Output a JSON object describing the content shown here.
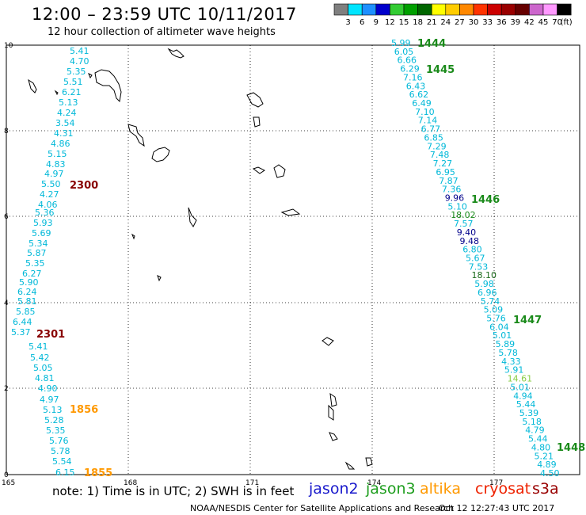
{
  "title": "12:00 – 23:59 UTC 10/11/2017",
  "subtitle": "12 hour collection of altimeter wave heights",
  "legend": {
    "colors": [
      "#7f7f7f",
      "#00e5ff",
      "#1e90ff",
      "#0000cc",
      "#33cc33",
      "#00a000",
      "#006600",
      "#ffff00",
      "#ffcc00",
      "#ff8800",
      "#ff3300",
      "#cc0000",
      "#990000",
      "#660000",
      "#cc66cc",
      "#ff99ff",
      "#000000"
    ],
    "labels": [
      "3",
      "6",
      "9",
      "12",
      "15",
      "18",
      "21",
      "24",
      "27",
      "30",
      "33",
      "36",
      "39",
      "42",
      "45",
      "70"
    ],
    "unit": "(ft)"
  },
  "axes": {
    "x_ticks": [
      "165",
      "168",
      "171",
      "174",
      "177"
    ],
    "y_ticks": [
      "10",
      "8",
      "6",
      "4",
      "2",
      "0"
    ]
  },
  "footer": {
    "note": "note:  1) Time is in UTC; 2) SWH is in feet",
    "satellites": [
      {
        "name": "jason2",
        "color": "#1a1acc"
      },
      {
        "name": "jason3",
        "color": "#1e9e1e"
      },
      {
        "name": "altika",
        "color": "#ff9900"
      },
      {
        "name": "cryosat",
        "color": "#ee2200"
      },
      {
        "name": "s3a",
        "color": "#990000"
      }
    ],
    "credit": "NOAA/NESDIS Center for Satellite Applications and Research",
    "timestamp": "Oct 12 12:27:43 UTC 2017"
  },
  "time_labels": [
    {
      "text": "1444",
      "color": "#1a8a1a"
    },
    {
      "text": "1445",
      "color": "#1a8a1a"
    },
    {
      "text": "1446",
      "color": "#1a8a1a"
    },
    {
      "text": "1447",
      "color": "#1a8a1a"
    },
    {
      "text": "1448",
      "color": "#1a8a1a"
    },
    {
      "text": "2300",
      "color": "#880000"
    },
    {
      "text": "2301",
      "color": "#880000"
    },
    {
      "text": "1856",
      "color": "#ff9900"
    },
    {
      "text": "1855",
      "color": "#ff9900"
    }
  ],
  "track_left": [
    "5.41",
    "4.70",
    "5.35",
    "5.51",
    "6.21",
    "5.13",
    "4.24",
    "3.54",
    "4.31",
    "4.86",
    "5.15",
    "4.83",
    "4.97",
    "5.50",
    "4.27",
    "4.06",
    "5.36",
    "5.93",
    "5.69",
    "5.34",
    "5.87",
    "5.35",
    "6.27",
    "5.90",
    "6.24",
    "5.81",
    "5.85",
    "6.44",
    "5.37",
    "5.41",
    "5.42",
    "5.05",
    "4.81",
    "4.90",
    "4.97",
    "5.13",
    "5.28",
    "5.35",
    "5.76",
    "5.78",
    "5.54",
    "6.15"
  ],
  "track_right": [
    {
      "v": "5.99",
      "c": "#00b8d8"
    },
    {
      "v": "6.05",
      "c": "#00b8d8"
    },
    {
      "v": "6.66",
      "c": "#00b8d8"
    },
    {
      "v": "6.29",
      "c": "#00b8d8"
    },
    {
      "v": "7.16",
      "c": "#00b8d8"
    },
    {
      "v": "6.43",
      "c": "#00b8d8"
    },
    {
      "v": "6.62",
      "c": "#00b8d8"
    },
    {
      "v": "6.49",
      "c": "#00b8d8"
    },
    {
      "v": "7.10",
      "c": "#00b8d8"
    },
    {
      "v": "7.14",
      "c": "#00b8d8"
    },
    {
      "v": "6.77",
      "c": "#00b8d8"
    },
    {
      "v": "6.85",
      "c": "#00b8d8"
    },
    {
      "v": "7.29",
      "c": "#00b8d8"
    },
    {
      "v": "7.48",
      "c": "#00b8d8"
    },
    {
      "v": "7.27",
      "c": "#00b8d8"
    },
    {
      "v": "6.95",
      "c": "#00b8d8"
    },
    {
      "v": "7.87",
      "c": "#00b8d8"
    },
    {
      "v": "7.36",
      "c": "#00b8d8"
    },
    {
      "v": "9.96",
      "c": "#00008b"
    },
    {
      "v": "5.10",
      "c": "#00b8d8"
    },
    {
      "v": "18.02",
      "c": "#1a8a1a"
    },
    {
      "v": "7.57",
      "c": "#00b8d8"
    },
    {
      "v": "9.40",
      "c": "#00008b"
    },
    {
      "v": "9.48",
      "c": "#00008b"
    },
    {
      "v": "6.80",
      "c": "#00b8d8"
    },
    {
      "v": "5.67",
      "c": "#00b8d8"
    },
    {
      "v": "7.53",
      "c": "#00b8d8"
    },
    {
      "v": "18.10",
      "c": "#1a6a1a"
    },
    {
      "v": "5.98",
      "c": "#00b8d8"
    },
    {
      "v": "6.96",
      "c": "#00b8d8"
    },
    {
      "v": "5.74",
      "c": "#00b8d8"
    },
    {
      "v": "5.09",
      "c": "#00b8d8"
    },
    {
      "v": "5.76",
      "c": "#00b8d8"
    },
    {
      "v": "6.04",
      "c": "#00b8d8"
    },
    {
      "v": "5.01",
      "c": "#00b8d8"
    },
    {
      "v": "5.89",
      "c": "#00b8d8"
    },
    {
      "v": "5.78",
      "c": "#00b8d8"
    },
    {
      "v": "4.33",
      "c": "#00b8d8"
    },
    {
      "v": "5.91",
      "c": "#00b8d8"
    },
    {
      "v": "14.61",
      "c": "#88cc44"
    },
    {
      "v": "5.01",
      "c": "#00b8d8"
    },
    {
      "v": "4.94",
      "c": "#00b8d8"
    },
    {
      "v": "5.44",
      "c": "#00b8d8"
    },
    {
      "v": "5.39",
      "c": "#00b8d8"
    },
    {
      "v": "5.18",
      "c": "#00b8d8"
    },
    {
      "v": "4.79",
      "c": "#00b8d8"
    },
    {
      "v": "5.44",
      "c": "#00b8d8"
    },
    {
      "v": "4.80",
      "c": "#00b8d8"
    },
    {
      "v": "5.21",
      "c": "#00b8d8"
    },
    {
      "v": "4.89",
      "c": "#00b8d8"
    },
    {
      "v": "4.50",
      "c": "#00b8d8"
    }
  ]
}
